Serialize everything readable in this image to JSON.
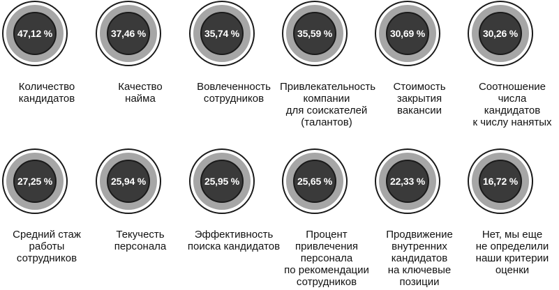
{
  "chart_data": {
    "type": "table",
    "unit": "%",
    "items": [
      {
        "label": "Количество\nкандидатов",
        "value": "47,12 %"
      },
      {
        "label": "Качество\nнайма",
        "value": "37,46 %"
      },
      {
        "label": "Вовлеченность\nсотрудников",
        "value": "35,74 %"
      },
      {
        "label": "Привлекательность\nкомпании\nдля соискателей\n(талантов)",
        "value": "35,59 %"
      },
      {
        "label": "Стоимость\nзакрытия\nвакансии",
        "value": "30,69 %"
      },
      {
        "label": "Соотношение\nчисла\nкандидатов\nк числу нанятых",
        "value": "30,26 %"
      },
      {
        "label": "Средний стаж\nработы\nсотрудников",
        "value": "27,25 %"
      },
      {
        "label": "Текучесть\nперсонала",
        "value": "25,94 %"
      },
      {
        "label": "Эффективность\nпоиска кандидатов",
        "value": "25,95 %"
      },
      {
        "label": "Процент\nпривлечения\nперсонала\nпо рекомендации\nсотрудников",
        "value": "25,65 %"
      },
      {
        "label": "Продвижение\nвнутренних\nкандидатов\nна ключевые\nпозиции",
        "value": "22,33 %"
      },
      {
        "label": "Нет, мы еще\nне определили\nнаши критерии\nоценки",
        "value": "16,72 %"
      }
    ]
  },
  "colors": {
    "ring_band": "#a6a6a6",
    "disc": "#3a3a3a",
    "text": "#111111"
  }
}
